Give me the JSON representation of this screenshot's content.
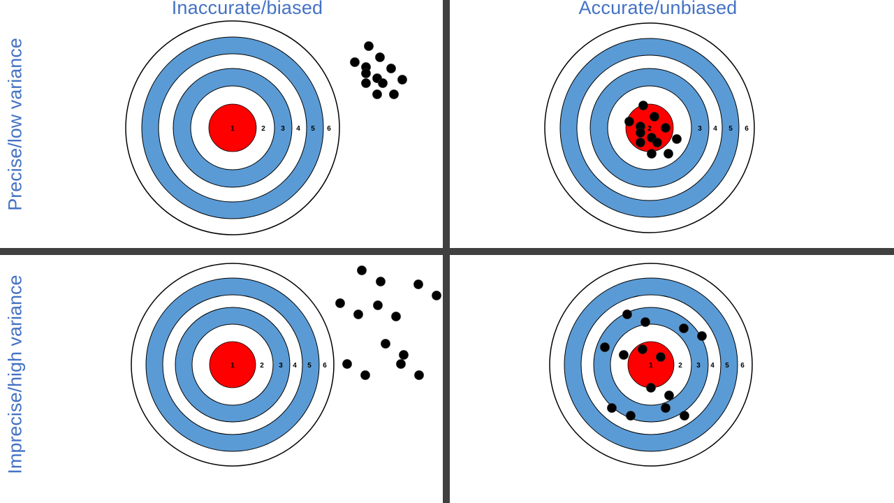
{
  "columns": {
    "left": "Inaccurate/biased",
    "right": "Accurate/unbiased"
  },
  "rows": {
    "top": "Precise/low variance",
    "bottom": "Imprecise/high variance"
  },
  "ring_labels": [
    "1",
    "2",
    "3",
    "4",
    "5",
    "6"
  ],
  "colors": {
    "bullseye": "#ff0000",
    "band": "#5b9bd5",
    "ring_outline": "#000000",
    "shot": "#000000",
    "header_text": "#4472c4",
    "divider": "#404040"
  },
  "panels": [
    {
      "id": "precise-biased",
      "row": "top",
      "column": "left"
    },
    {
      "id": "precise-unbiased",
      "row": "top",
      "column": "right"
    },
    {
      "id": "imprecise-biased",
      "row": "bottom",
      "column": "left"
    },
    {
      "id": "imprecise-unbiased",
      "row": "bottom",
      "column": "right"
    }
  ]
}
